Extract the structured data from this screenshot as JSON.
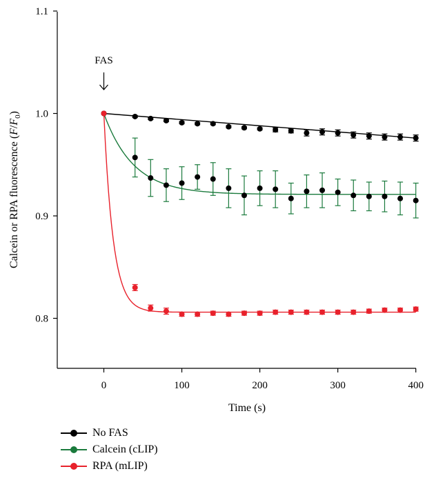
{
  "chart_data": {
    "type": "line",
    "title": "",
    "xlabel": "Time (s)",
    "ylabel_parts": [
      "Calcein or RPA fluorescence (",
      "F",
      "/",
      "F",
      "0",
      ")"
    ],
    "xlim": [
      -60,
      400
    ],
    "ylim": [
      0.75,
      1.1
    ],
    "xticks": [
      0,
      100,
      200,
      300,
      400
    ],
    "yticks": [
      0.8,
      0.9,
      1.0,
      1.1
    ],
    "ytick_labels": [
      "0.8",
      "0.9",
      "1.0",
      "1.1"
    ],
    "annotation": {
      "text": "FAS",
      "x": 0
    },
    "legend_position": "below",
    "series": [
      {
        "name": "No FAS",
        "color": "#000000",
        "x": [
          0,
          40,
          60,
          80,
          100,
          120,
          140,
          160,
          180,
          200,
          220,
          240,
          260,
          280,
          300,
          320,
          340,
          360,
          380,
          400
        ],
        "y": [
          1.0,
          0.997,
          0.995,
          0.993,
          0.991,
          0.99,
          0.99,
          0.987,
          0.986,
          0.985,
          0.984,
          0.983,
          0.981,
          0.982,
          0.981,
          0.979,
          0.978,
          0.977,
          0.977,
          0.976
        ],
        "err": [
          0,
          0.001,
          0.001,
          0.001,
          0.001,
          0.001,
          0.001,
          0.001,
          0.001,
          0.001,
          0.002,
          0.002,
          0.003,
          0.003,
          0.003,
          0.003,
          0.003,
          0.003,
          0.003,
          0.003
        ],
        "fit": "linear",
        "fit_end": 0.976
      },
      {
        "name": "Calcein (cLIP)",
        "color": "#1a7a3c",
        "x": [
          0,
          40,
          60,
          80,
          100,
          120,
          140,
          160,
          180,
          200,
          220,
          240,
          260,
          280,
          300,
          320,
          340,
          360,
          380,
          400
        ],
        "y": [
          1.0,
          0.957,
          0.937,
          0.93,
          0.932,
          0.938,
          0.936,
          0.927,
          0.92,
          0.927,
          0.926,
          0.917,
          0.924,
          0.925,
          0.923,
          0.92,
          0.919,
          0.919,
          0.917,
          0.915
        ],
        "err": [
          0,
          0.019,
          0.018,
          0.016,
          0.016,
          0.012,
          0.016,
          0.019,
          0.019,
          0.017,
          0.018,
          0.015,
          0.016,
          0.017,
          0.013,
          0.015,
          0.014,
          0.015,
          0.016,
          0.017
        ],
        "fit": "exp",
        "plateau": 0.921,
        "tau": 38
      },
      {
        "name": "RPA (mLIP)",
        "color": "#e8212b",
        "x": [
          0,
          40,
          60,
          80,
          100,
          120,
          140,
          160,
          180,
          200,
          220,
          240,
          260,
          280,
          300,
          320,
          340,
          360,
          380,
          400
        ],
        "y": [
          1.0,
          0.83,
          0.81,
          0.807,
          0.804,
          0.804,
          0.805,
          0.804,
          0.805,
          0.805,
          0.806,
          0.806,
          0.806,
          0.806,
          0.806,
          0.806,
          0.807,
          0.808,
          0.808,
          0.809
        ],
        "err": [
          0,
          0.003,
          0.003,
          0.003,
          0.002,
          0.002,
          0.002,
          0.002,
          0.002,
          0.002,
          0.002,
          0.002,
          0.002,
          0.002,
          0.002,
          0.002,
          0.002,
          0.002,
          0.002,
          0.002
        ],
        "fit": "exp",
        "plateau": 0.806,
        "tau": 12
      }
    ]
  }
}
